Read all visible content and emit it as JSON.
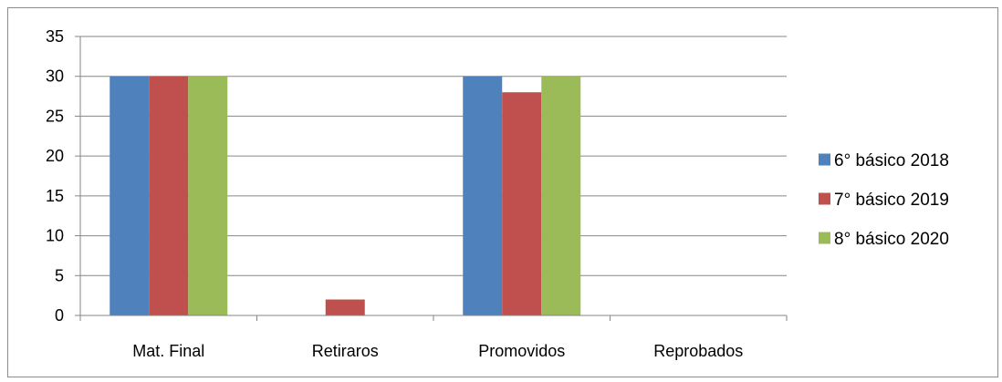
{
  "chart_data": {
    "type": "bar",
    "title": "",
    "xlabel": "",
    "ylabel": "",
    "categories": [
      "Mat. Final",
      "Retiraros",
      "Promovidos",
      "Reprobados"
    ],
    "series": [
      {
        "name": "6° básico 2018",
        "color": "#4f81bd",
        "values": [
          30,
          0,
          30,
          0
        ]
      },
      {
        "name": "7° básico 2019",
        "color": "#c0504d",
        "values": [
          30,
          2,
          28,
          0
        ]
      },
      {
        "name": "8° básico 2020",
        "color": "#9bbb59",
        "values": [
          30,
          0,
          30,
          0
        ]
      }
    ],
    "ylim": [
      0,
      35
    ],
    "yticks": [
      0,
      5,
      10,
      15,
      20,
      25,
      30,
      35
    ],
    "grid": true,
    "legend_position": "right"
  }
}
